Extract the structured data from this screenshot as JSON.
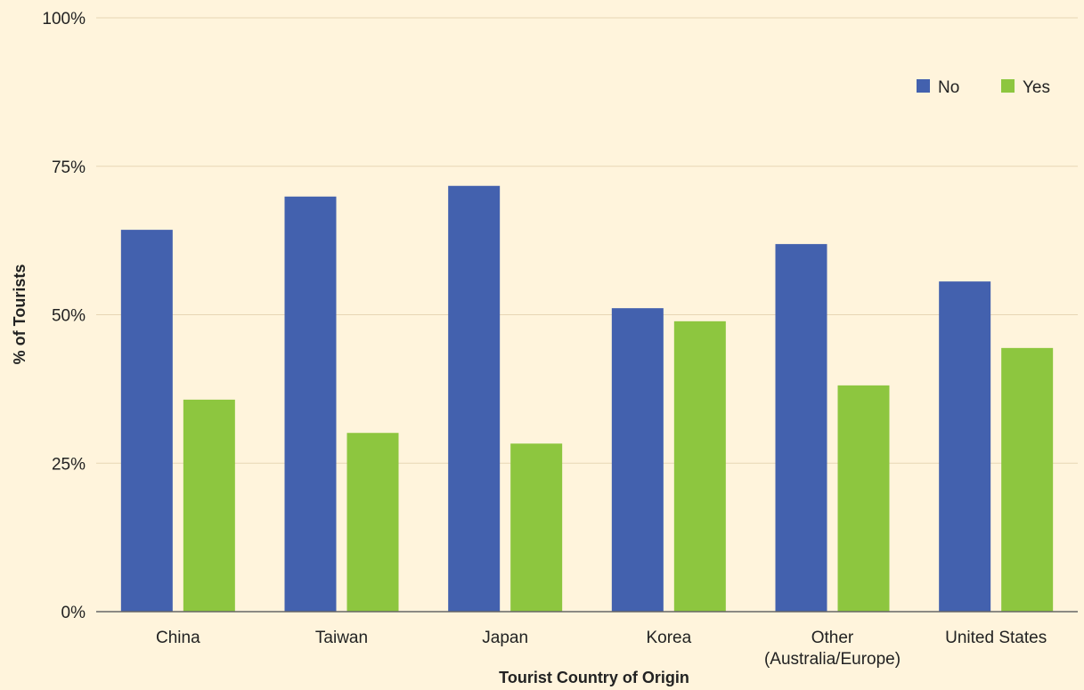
{
  "chart_data": {
    "type": "bar",
    "title": "",
    "xlabel": "Tourist Country of Origin",
    "ylabel": "% of Tourists",
    "ylim": [
      0,
      100
    ],
    "yticks": [
      "0%",
      "25%",
      "50%",
      "75%",
      "100%"
    ],
    "ytick_values": [
      0,
      25,
      50,
      75,
      100
    ],
    "categories": [
      [
        "China"
      ],
      [
        "Taiwan"
      ],
      [
        "Japan"
      ],
      [
        "Korea"
      ],
      [
        "Other",
        "(Australia/Europe)"
      ],
      [
        "United States"
      ]
    ],
    "series": [
      {
        "name": "No",
        "color": "#4361ae",
        "values": [
          64.3,
          69.9,
          71.7,
          51.1,
          61.9,
          55.6
        ]
      },
      {
        "name": "Yes",
        "color": "#8dc63f",
        "values": [
          35.7,
          30.1,
          28.3,
          48.9,
          38.1,
          44.4
        ]
      }
    ],
    "legend": "top-right",
    "grid": true,
    "colors": {
      "background": "#fff4dc",
      "grid": "#e7d6b5",
      "axis": "#666666"
    }
  }
}
